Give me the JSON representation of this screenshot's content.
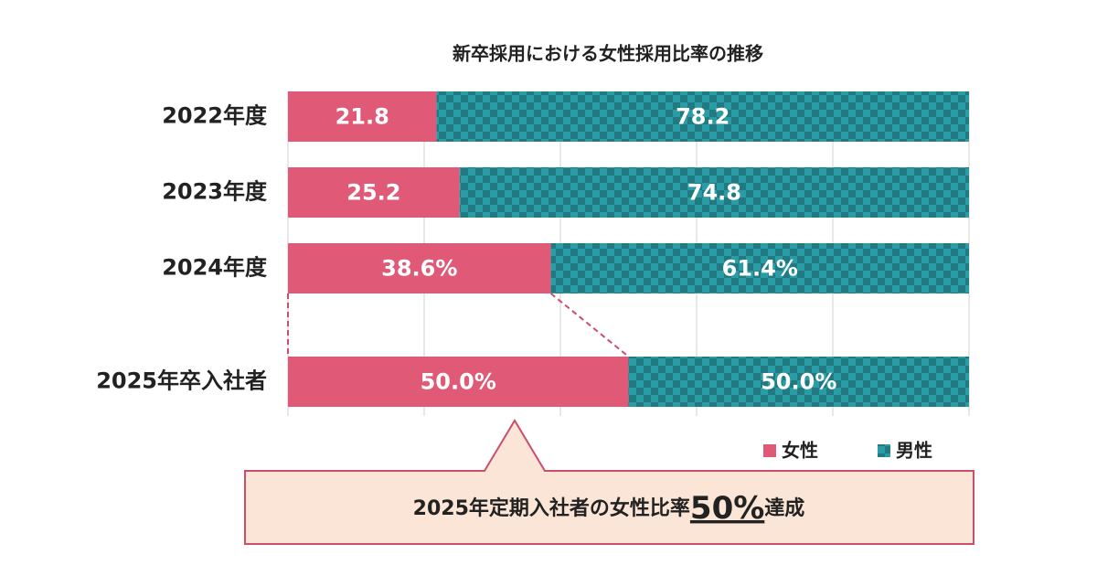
{
  "chart_data": {
    "type": "stacked-bar-horizontal",
    "title": "新卒採用における女性採用比率の推移",
    "categories": [
      "2022年度",
      "2023年度",
      "2024年度",
      "2025年卒入社者"
    ],
    "series": [
      {
        "name": "女性",
        "color": "#e05a78",
        "values": [
          21.8,
          25.2,
          38.6,
          50.0
        ],
        "value_labels": [
          "21.8",
          "25.2",
          "38.6%",
          "50.0%"
        ]
      },
      {
        "name": "男性",
        "color": "#2a9ca6",
        "pattern": "checker",
        "values": [
          78.2,
          74.8,
          61.4,
          50.0
        ],
        "value_labels": [
          "78.2",
          "74.8",
          "61.4%",
          "50.0%"
        ]
      }
    ],
    "xlim": [
      0,
      100
    ],
    "xticks": [
      0,
      20,
      40,
      60,
      80,
      100
    ],
    "grid": true,
    "legend": "bottom-right",
    "annotation": {
      "before": "2025年定期入社者の女性比率",
      "highlight": "50%",
      "after": "達成"
    }
  }
}
